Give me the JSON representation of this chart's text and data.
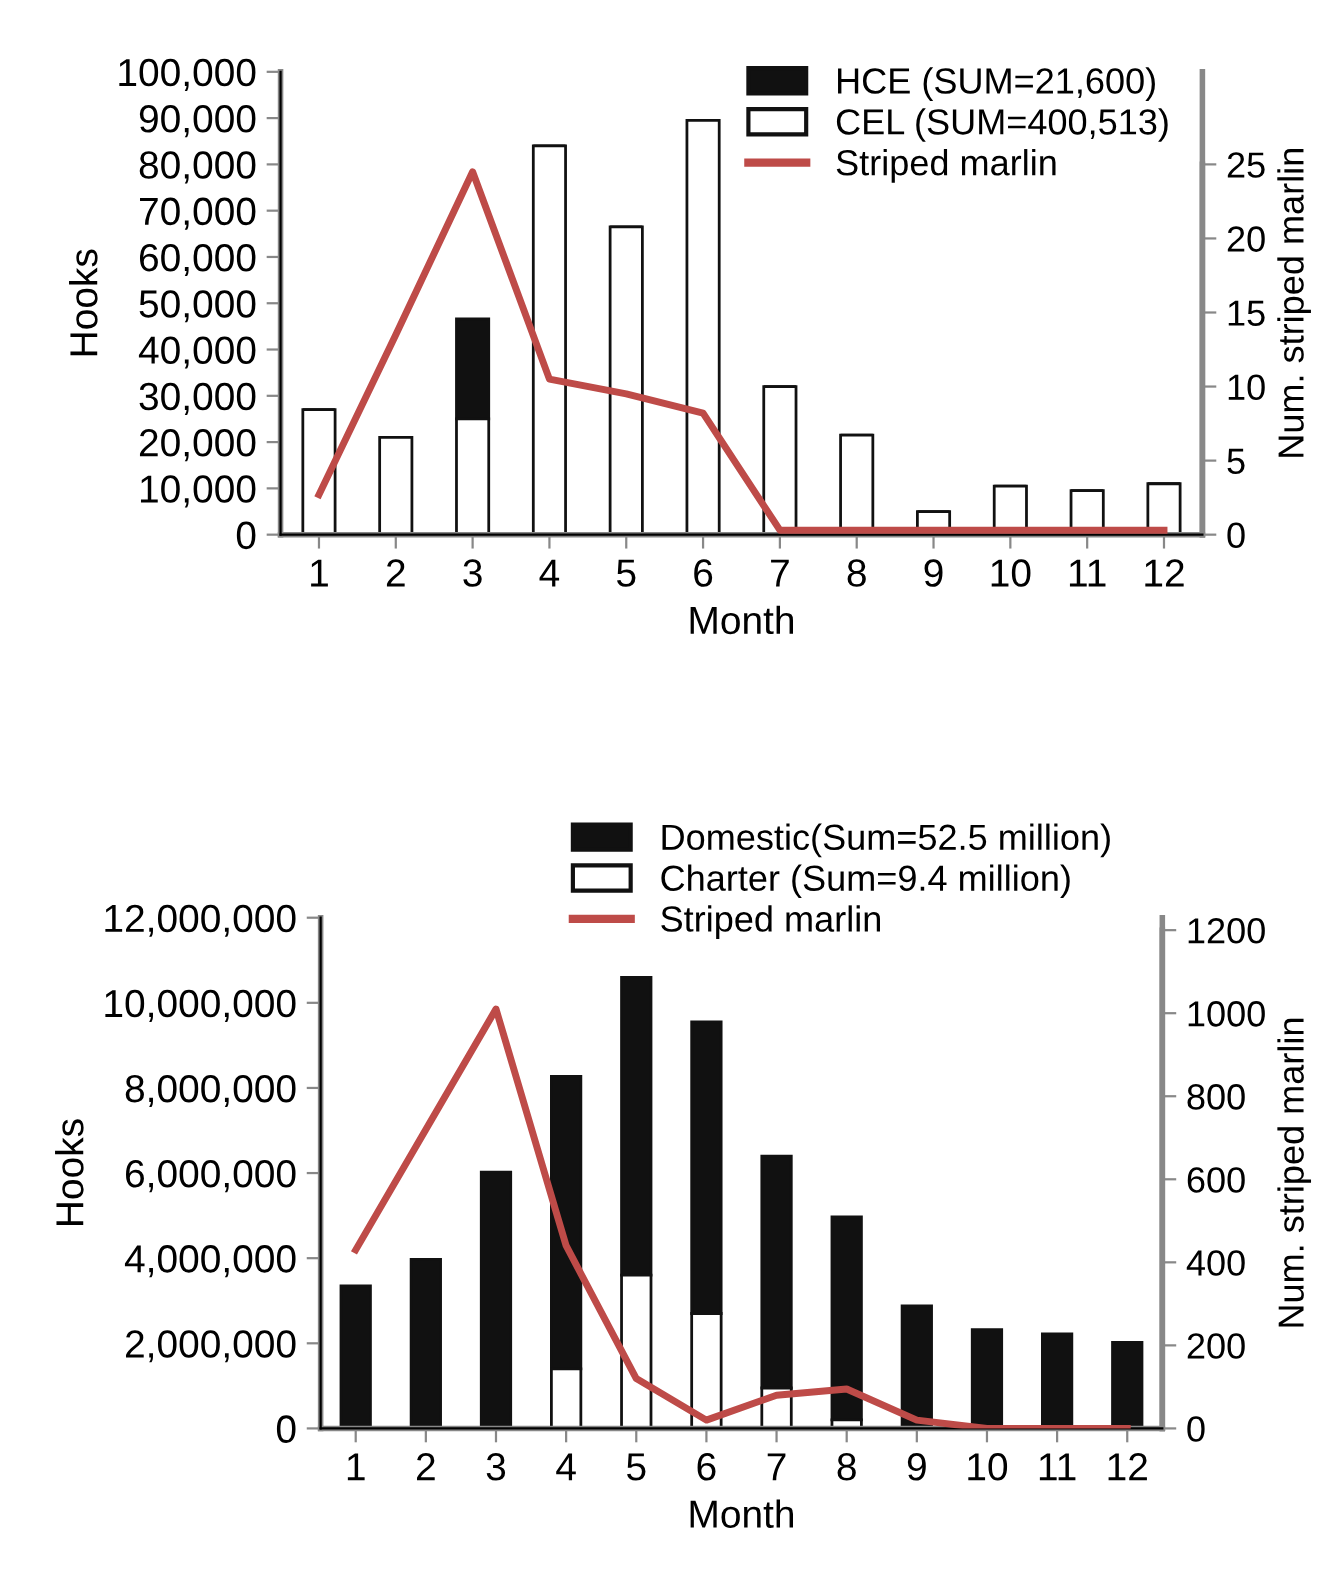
{
  "chart_data": [
    {
      "type": "bar",
      "stacked": true,
      "categories": [
        "1",
        "2",
        "3",
        "4",
        "5",
        "6",
        "7",
        "8",
        "9",
        "10",
        "11",
        "12"
      ],
      "series": [
        {
          "name": "CEL (SUM=400,513)",
          "color": "#ffffff",
          "values": [
            27000,
            21000,
            25000,
            84000,
            66500,
            89500,
            32000,
            21500,
            5000,
            10500,
            9500,
            11000
          ]
        },
        {
          "name": "HCE (SUM=21,600)",
          "color": "#111111",
          "values": [
            0,
            0,
            21600,
            0,
            0,
            0,
            0,
            0,
            0,
            0,
            0,
            0
          ]
        },
        {
          "name": "Striped marlin",
          "type": "line",
          "axis": "y2",
          "color": "#be4b48",
          "values": [
            2.7,
            13.5,
            24.5,
            10.5,
            9.5,
            8.2,
            0.3,
            0.3,
            0.3,
            0.3,
            0.3,
            0.3
          ]
        }
      ],
      "xlabel": "Month",
      "ylabel": "Hooks",
      "y2label": "Num. striped marlin",
      "ylim": [
        0,
        100000
      ],
      "yticks": [
        {
          "value": 0,
          "label": "0"
        },
        {
          "value": 10000,
          "label": "10,000"
        },
        {
          "value": 20000,
          "label": "20,000"
        },
        {
          "value": 30000,
          "label": "30,000"
        },
        {
          "value": 40000,
          "label": "40,000"
        },
        {
          "value": 50000,
          "label": "50,000"
        },
        {
          "value": 60000,
          "label": "60,000"
        },
        {
          "value": 70000,
          "label": "70,000"
        },
        {
          "value": 80000,
          "label": "80,000"
        },
        {
          "value": 90000,
          "label": "90,000"
        },
        {
          "value": 100000,
          "label": "100,000"
        }
      ],
      "y2lim": [
        0,
        31.25
      ],
      "y2ticks": [
        0,
        5,
        10,
        15,
        20,
        25
      ],
      "legend": "top right",
      "grid": false
    },
    {
      "type": "bar",
      "stacked": true,
      "categories": [
        "1",
        "2",
        "3",
        "4",
        "5",
        "6",
        "7",
        "8",
        "9",
        "10",
        "11",
        "12"
      ],
      "series": [
        {
          "name": "Charter (Sum=9.4 million)",
          "color": "#ffffff",
          "values": [
            0,
            0,
            0,
            1400000,
            3600000,
            2700000,
            950000,
            200000,
            0,
            0,
            0,
            0
          ]
        },
        {
          "name": "Domestic(Sum=52.5 million)",
          "color": "#111111",
          "values": [
            3350000,
            3970000,
            6020000,
            6870000,
            7000000,
            6850000,
            5450000,
            4770000,
            2880000,
            2320000,
            2220000,
            2020000
          ]
        },
        {
          "name": "Striped marlin",
          "type": "line",
          "axis": "y2",
          "color": "#be4b48",
          "values": [
            430,
            720,
            1010,
            440,
            120,
            20,
            80,
            95,
            20,
            0,
            0,
            0
          ]
        }
      ],
      "xlabel": "Month",
      "ylabel": "Hooks",
      "y2label": "Num. striped marlin",
      "ylim": [
        0,
        12000000
      ],
      "yticks": [
        {
          "value": 0,
          "label": "0"
        },
        {
          "value": 2000000,
          "label": "2,000,000"
        },
        {
          "value": 4000000,
          "label": "4,000,000"
        },
        {
          "value": 6000000,
          "label": "6,000,000"
        },
        {
          "value": 8000000,
          "label": "8,000,000"
        },
        {
          "value": 10000000,
          "label": "10,000,000"
        },
        {
          "value": 12000000,
          "label": "12,000,000"
        }
      ],
      "y2lim": [
        0,
        1230
      ],
      "y2ticks": [
        0,
        200,
        400,
        600,
        800,
        1000,
        1200
      ],
      "legend": "top",
      "grid": false
    }
  ]
}
